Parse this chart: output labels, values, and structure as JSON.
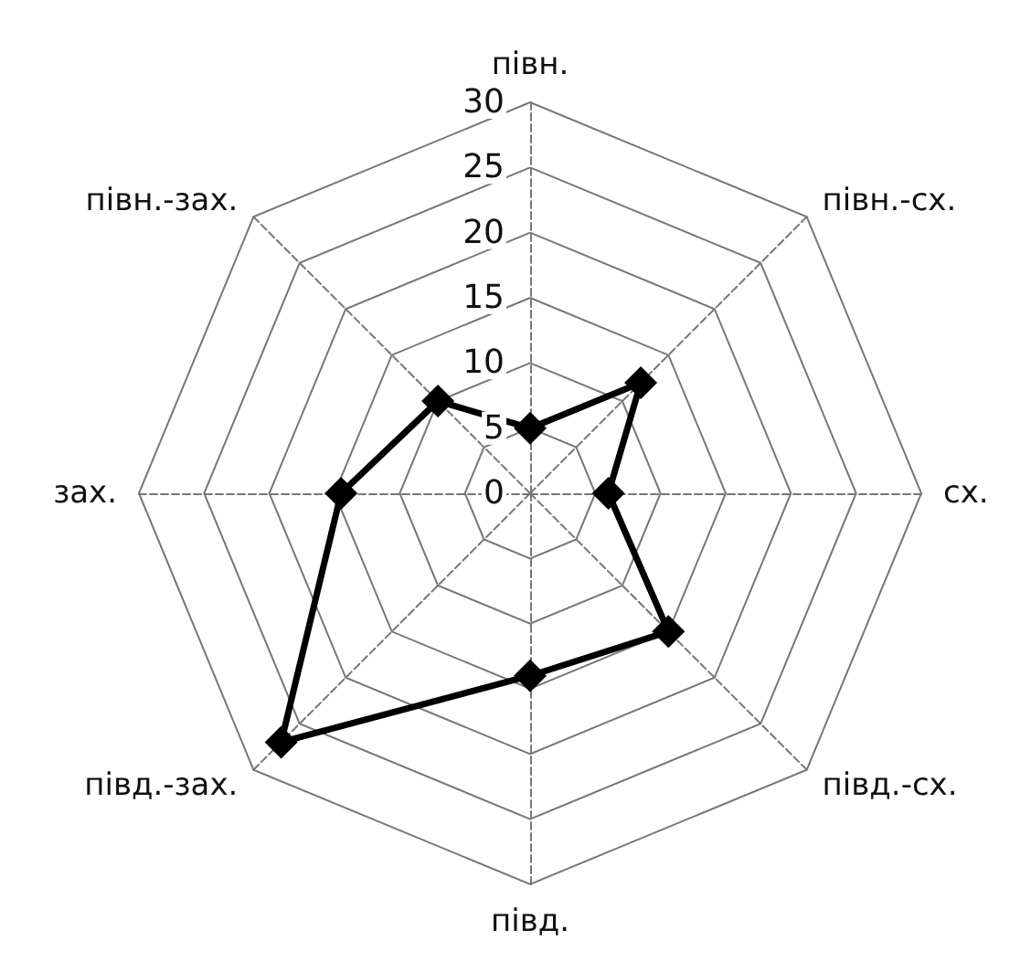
{
  "chart_data": {
    "type": "radar",
    "categories": [
      "півн.",
      "півн.-сх.",
      "сх.",
      "півд.-сх.",
      "півд.",
      "півд.-зах.",
      "зах.",
      "півн.-зах."
    ],
    "series": [
      {
        "color": "#000000",
        "values": [
          5,
          12,
          6,
          15,
          14,
          27,
          14.5,
          10
        ]
      }
    ],
    "ylim": [
      0,
      30
    ],
    "yticks": [
      0,
      5,
      10,
      15,
      20,
      25,
      30
    ],
    "marker": "diamond",
    "line_style": "solid",
    "grid": true
  }
}
